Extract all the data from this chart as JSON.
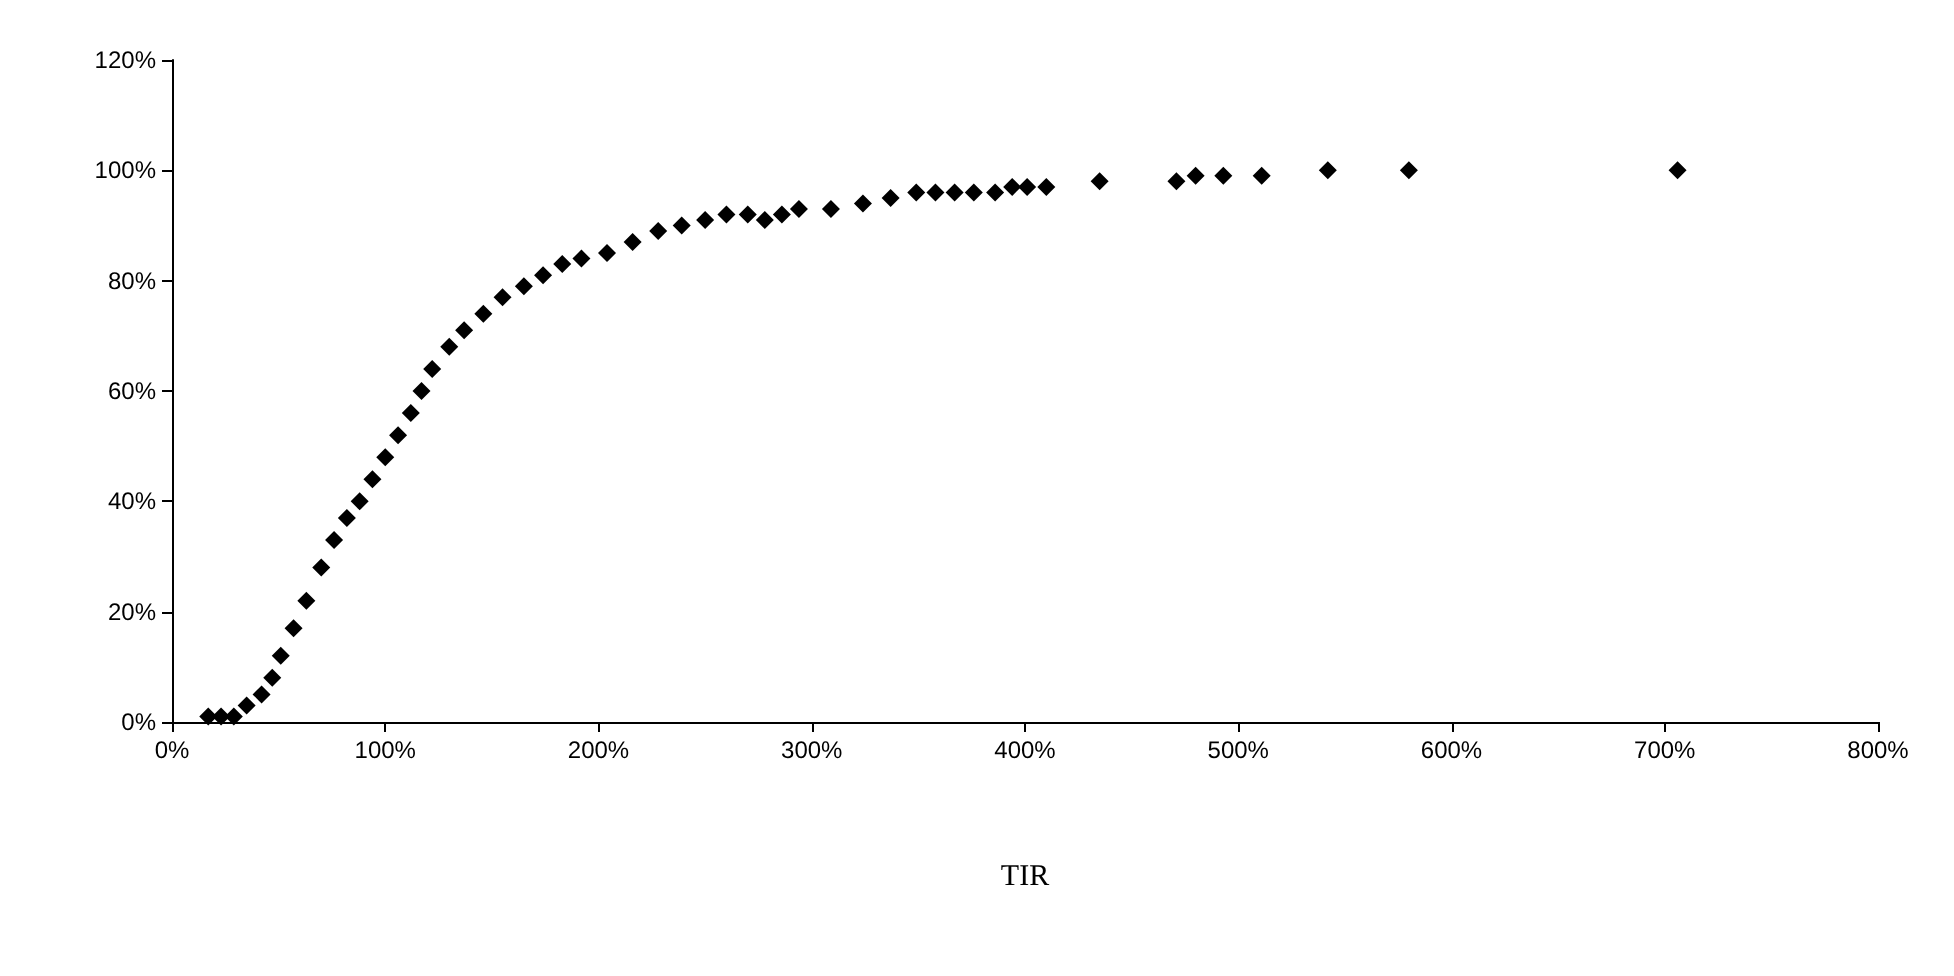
{
  "chart_data": {
    "type": "scatter",
    "xlabel": "TIR",
    "marker": "diamond",
    "grid": false,
    "x": [
      17,
      23,
      29,
      35,
      42,
      47,
      51,
      57,
      63,
      70,
      76,
      82,
      88,
      94,
      100,
      106,
      112,
      117,
      122,
      130,
      137,
      146,
      155,
      165,
      174,
      183,
      192,
      204,
      216,
      228,
      239,
      250,
      260,
      270,
      278,
      286,
      294,
      309,
      324,
      337,
      349,
      358,
      367,
      376,
      386,
      394,
      401,
      410,
      435,
      471,
      480,
      493,
      511,
      542,
      580,
      706
    ],
    "series": [
      {
        "color": "#000000",
        "values": [
          1,
          1,
          1,
          3,
          5,
          8,
          12,
          17,
          22,
          28,
          33,
          37,
          40,
          44,
          48,
          52,
          56,
          60,
          64,
          68,
          71,
          74,
          77,
          79,
          81,
          83,
          84,
          85,
          87,
          89,
          90,
          91,
          92,
          92,
          91,
          92,
          93,
          93,
          94,
          95,
          96,
          96,
          96,
          96,
          96,
          97,
          97,
          97,
          98,
          98,
          99,
          99,
          99,
          100,
          100,
          100
        ]
      }
    ],
    "xlim": [
      0,
      800
    ],
    "ylim": [
      0,
      120
    ],
    "xticks": [
      {
        "value": 0,
        "label": "0%"
      },
      {
        "value": 100,
        "label": "100%"
      },
      {
        "value": 200,
        "label": "200%"
      },
      {
        "value": 300,
        "label": "300%"
      },
      {
        "value": 400,
        "label": "400%"
      },
      {
        "value": 500,
        "label": "500%"
      },
      {
        "value": 600,
        "label": "600%"
      },
      {
        "value": 700,
        "label": "700%"
      },
      {
        "value": 800,
        "label": "800%"
      }
    ],
    "yticks": [
      {
        "value": 0,
        "label": "0%"
      },
      {
        "value": 20,
        "label": "20%"
      },
      {
        "value": 40,
        "label": "40%"
      },
      {
        "value": 60,
        "label": "60%"
      },
      {
        "value": 80,
        "label": "80%"
      },
      {
        "value": 100,
        "label": "100%"
      },
      {
        "value": 120,
        "label": "120%"
      }
    ]
  }
}
